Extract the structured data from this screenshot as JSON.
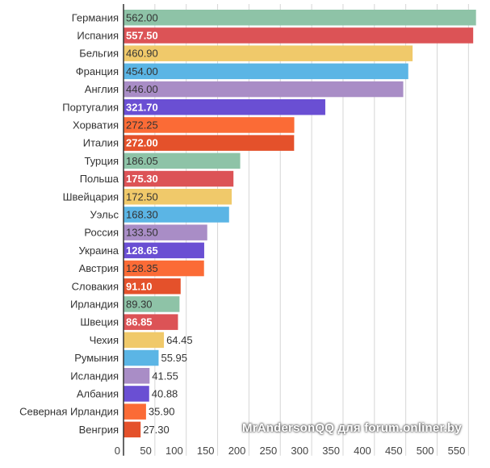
{
  "chart_data": {
    "type": "bar",
    "orientation": "horizontal",
    "categories": [
      "Германия",
      "Испания",
      "Бельгия",
      "Франция",
      "Англия",
      "Португалия",
      "Хорватия",
      "Италия",
      "Турция",
      "Польша",
      "Швейцария",
      "Уэльс",
      "Россия",
      "Украина",
      "Австрия",
      "Словакия",
      "Ирландия",
      "Швеция",
      "Чехия",
      "Румыния",
      "Исландия",
      "Албания",
      "Северная Ирландия",
      "Венгрия"
    ],
    "values": [
      562.0,
      557.5,
      460.9,
      454.0,
      446.0,
      321.7,
      272.25,
      272.0,
      186.05,
      175.3,
      172.5,
      168.3,
      133.5,
      128.65,
      128.35,
      91.1,
      89.3,
      86.85,
      64.45,
      55.95,
      41.55,
      40.88,
      35.9,
      27.3
    ],
    "value_labels": [
      "562.00",
      "557.50",
      "460.90",
      "454.00",
      "446.00",
      "321.70",
      "272.25",
      "272.00",
      "186.05",
      "175.30",
      "172.50",
      "168.30",
      "133.50",
      "128.65",
      "128.35",
      "91.10",
      "89.30",
      "86.85",
      "64.45",
      "55.95",
      "41.55",
      "40.88",
      "35.90",
      "27.30"
    ],
    "colors": [
      "#8ec3a7",
      "#dc5356",
      "#f0c96a",
      "#5bb5e5",
      "#a98dc6",
      "#6a4fd3",
      "#fb6b36",
      "#e4512b"
    ],
    "label_light_on": [
      "#dc5356",
      "#6a4fd3",
      "#e4512b"
    ],
    "xlim": [
      0,
      575
    ],
    "xticks": [
      0,
      50,
      100,
      150,
      200,
      250,
      300,
      350,
      400,
      450,
      500,
      550
    ],
    "grid": true,
    "legend": "none",
    "title": "",
    "xlabel": "",
    "ylabel": ""
  },
  "watermark": "MrAndersonQQ для forum.onliner.by"
}
